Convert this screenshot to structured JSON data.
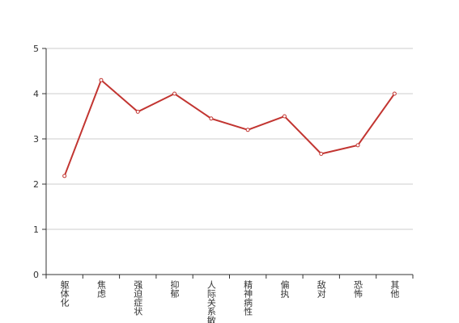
{
  "chart_data": {
    "type": "line",
    "categories": [
      "躯体化",
      "焦虑",
      "强迫症状",
      "抑郁",
      "人际关系敏感",
      "精神病性",
      "偏执",
      "敌对",
      "恐怖",
      "其他"
    ],
    "values": [
      2.18,
      4.3,
      3.6,
      4.0,
      3.45,
      3.2,
      3.5,
      2.67,
      2.86,
      4.0
    ],
    "color": "#c23531",
    "ylim": [
      0,
      5
    ],
    "yticks": [
      0,
      1,
      2,
      3,
      4,
      5
    ],
    "grid": true
  }
}
